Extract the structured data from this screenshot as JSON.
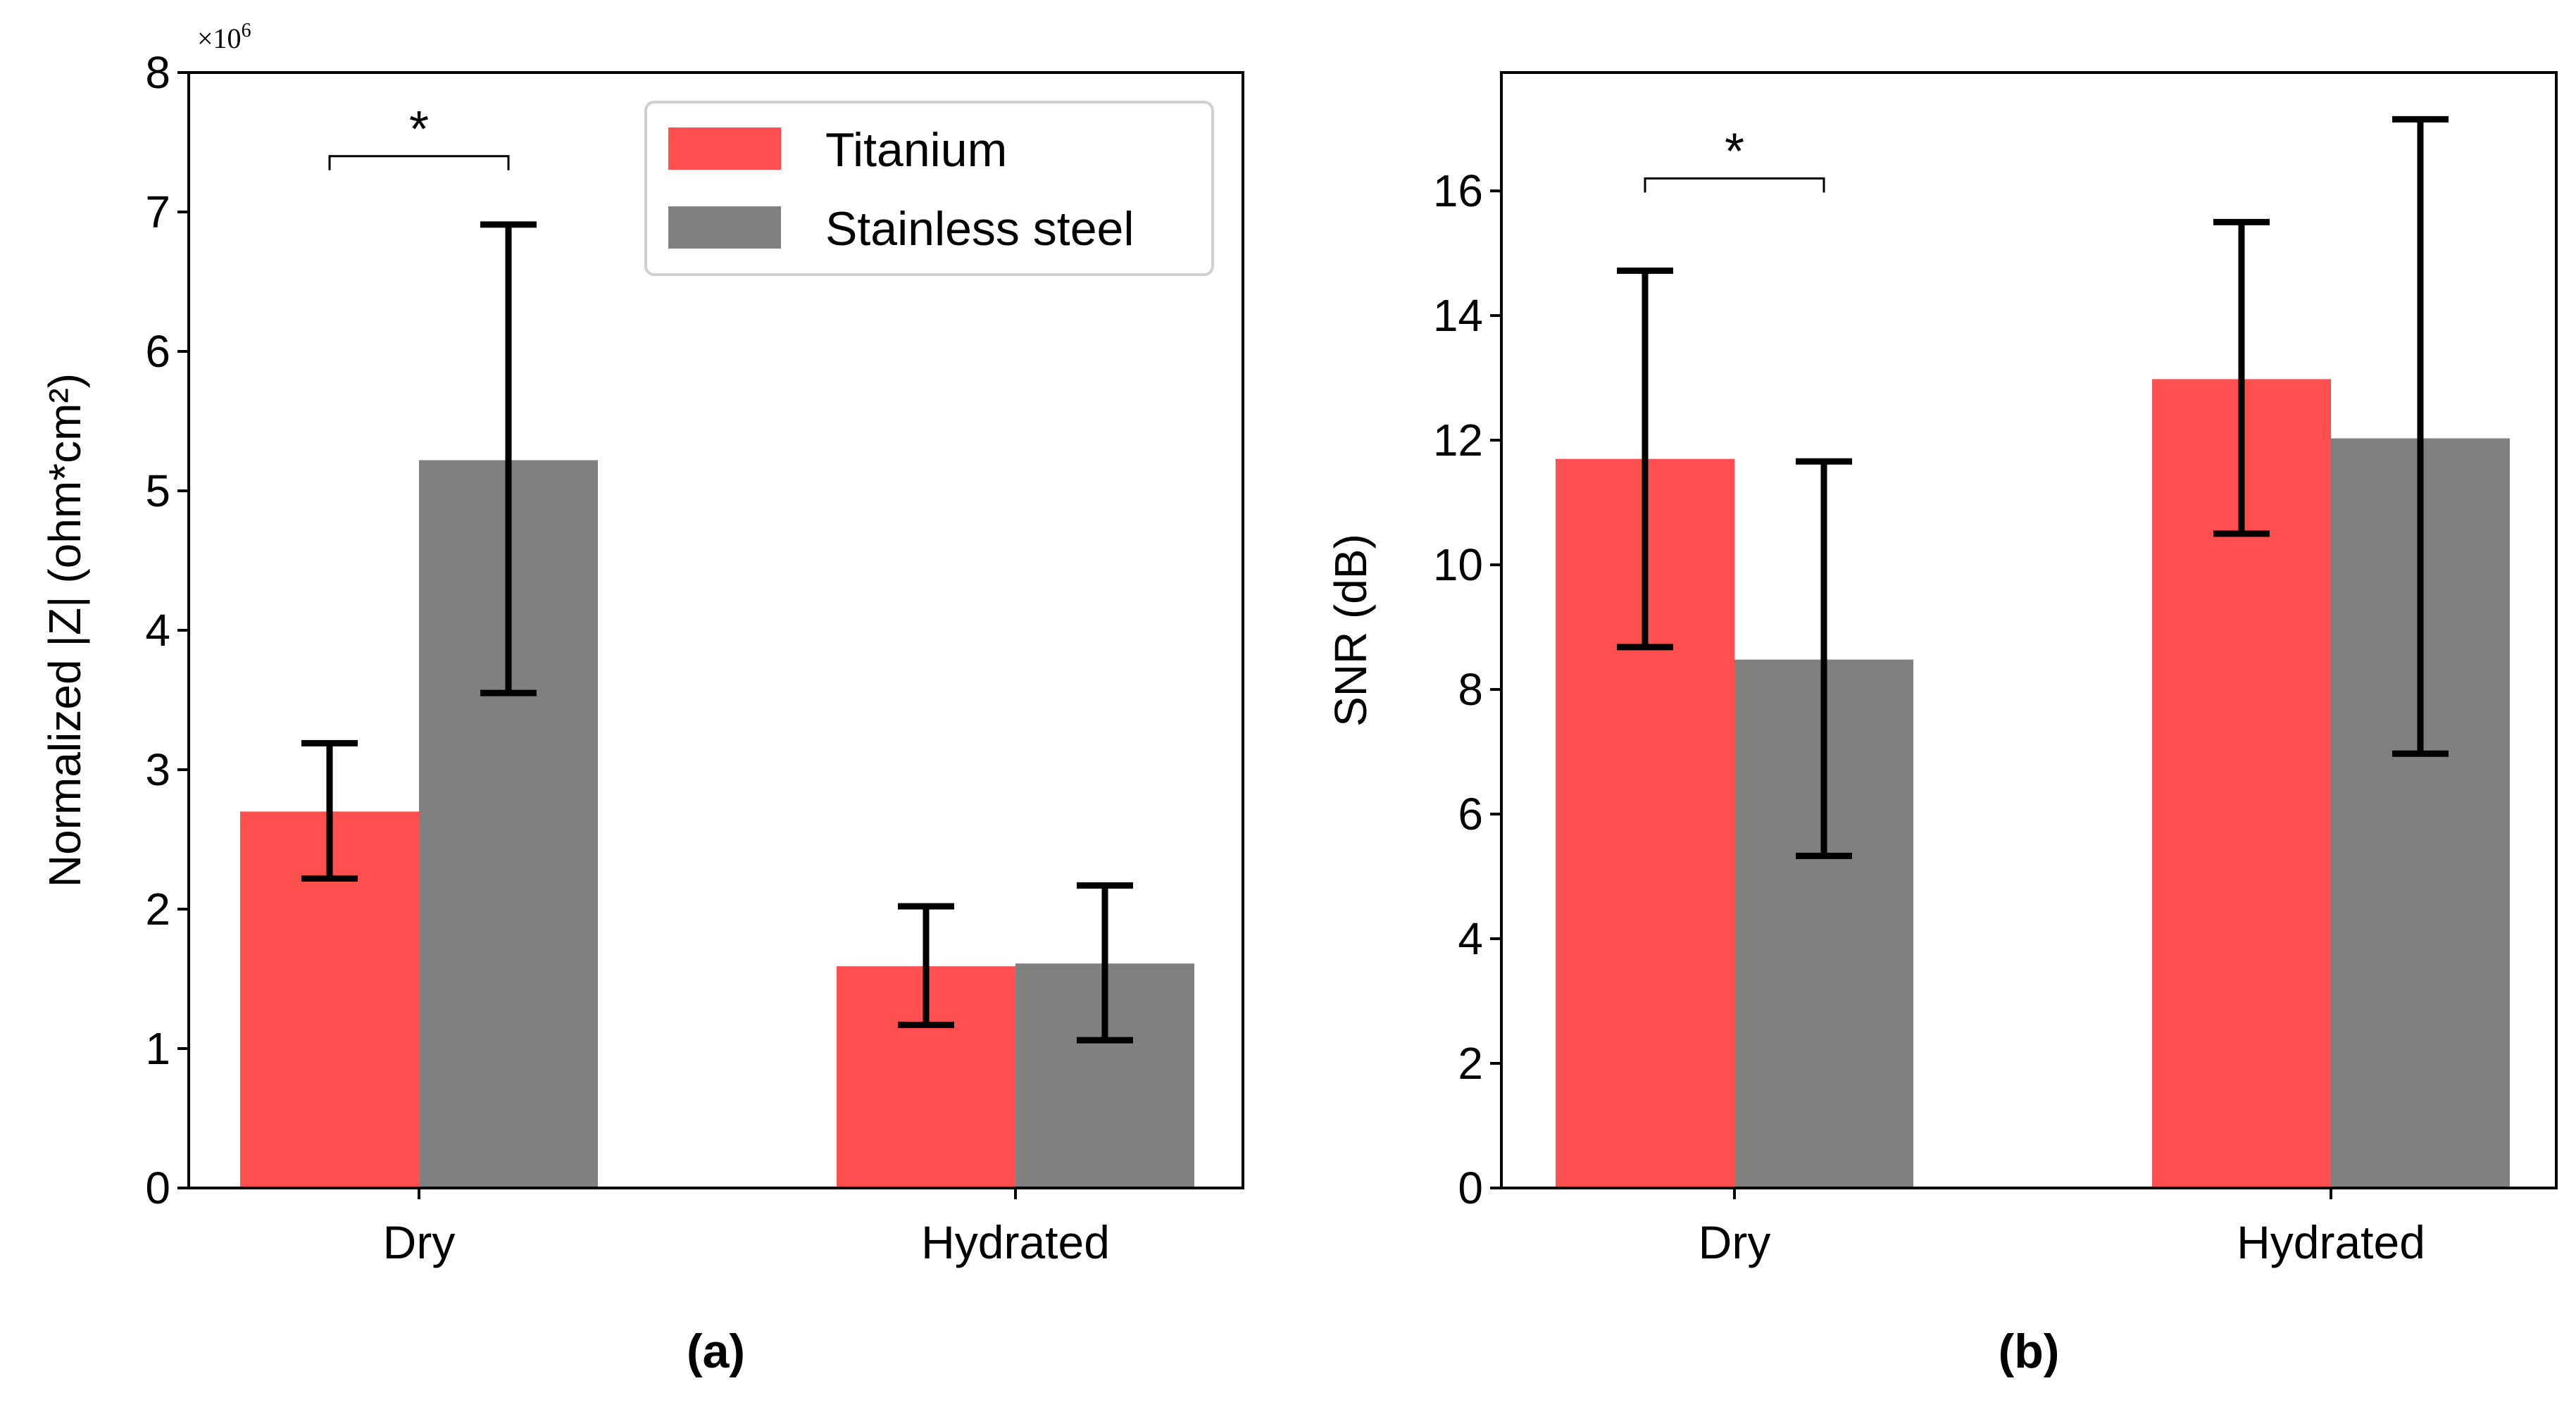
{
  "chart_data": [
    {
      "type": "bar",
      "panel_label": "(a)",
      "ylabel": "Normalized |Z| (ohm*cm²)",
      "xlabel": "",
      "ylim": [
        0,
        8
      ],
      "yticks": [
        0,
        1,
        2,
        3,
        4,
        5,
        6,
        7,
        8
      ],
      "y_multiplier": "×10",
      "y_multiplier_exp": "6",
      "categories": [
        "Dry",
        "Hydrated"
      ],
      "series": [
        {
          "name": "Titanium",
          "color": "#ff4f4f",
          "values": [
            2.7,
            1.59
          ],
          "err_low": [
            2.22,
            1.17
          ],
          "err_high": [
            3.19,
            2.02
          ]
        },
        {
          "name": "Stainless steel",
          "color": "#808080",
          "values": [
            5.22,
            1.61
          ],
          "err_low": [
            3.55,
            1.06
          ],
          "err_high": [
            6.91,
            2.17
          ]
        }
      ],
      "legend": {
        "position": "top-right",
        "entries": [
          "Titanium",
          "Stainless steel"
        ]
      },
      "significance": [
        {
          "category": "Dry",
          "label": "*",
          "y": 7.4
        }
      ]
    },
    {
      "type": "bar",
      "panel_label": "(b)",
      "ylabel": "SNR (dB)",
      "xlabel": "",
      "ylim": [
        0,
        17.9
      ],
      "yticks": [
        0,
        2,
        4,
        6,
        8,
        10,
        12,
        14,
        16
      ],
      "categories": [
        "Dry",
        "Hydrated"
      ],
      "series": [
        {
          "name": "Titanium",
          "color": "#ff4f4f",
          "values": [
            11.7,
            12.98
          ],
          "err_low": [
            8.68,
            10.5
          ],
          "err_high": [
            14.72,
            15.5
          ]
        },
        {
          "name": "Stainless steel",
          "color": "#808080",
          "values": [
            8.48,
            12.03
          ],
          "err_low": [
            5.33,
            6.97
          ],
          "err_high": [
            11.66,
            17.15
          ]
        }
      ],
      "significance": [
        {
          "category": "Dry",
          "label": "*",
          "y": 16.2
        }
      ]
    }
  ]
}
